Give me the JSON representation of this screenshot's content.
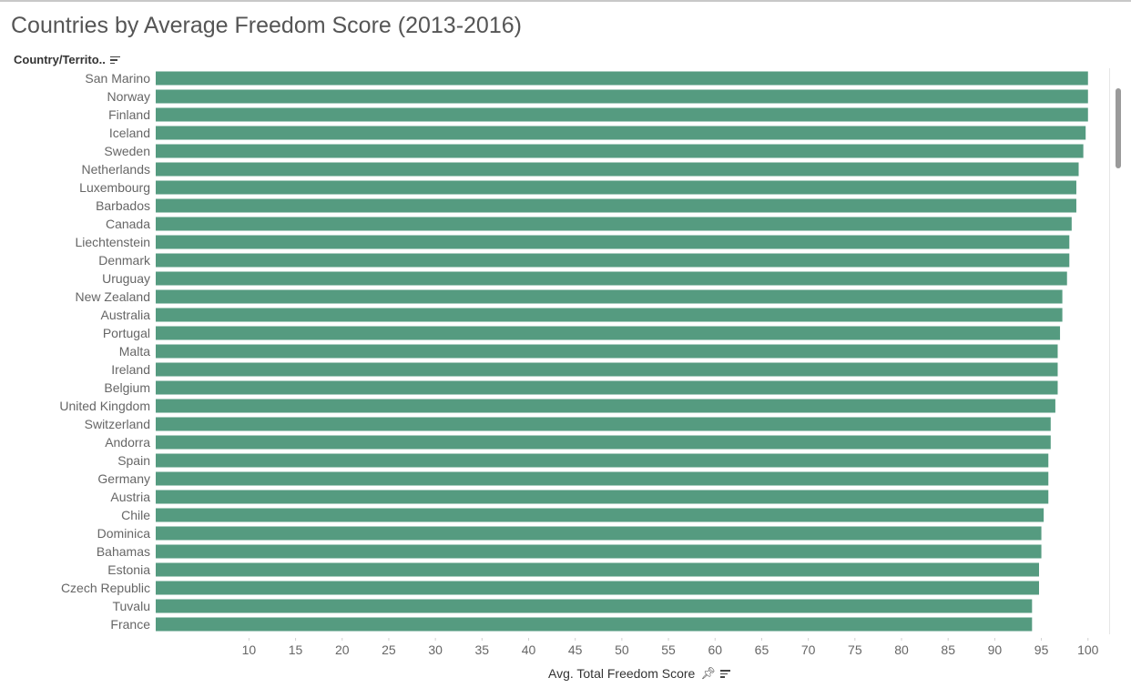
{
  "page": {
    "title": "Countries by Average Freedom Score (2013-2016)"
  },
  "chart_data": {
    "type": "bar",
    "orientation": "horizontal",
    "title": "Countries by Average Freedom Score (2013-2016)",
    "row_header": "Country/Territo..",
    "xlabel": "Avg. Total Freedom Score",
    "ylabel": "",
    "bar_color": "#559b80",
    "xlim": [
      0,
      101
    ],
    "xticks": [
      10,
      15,
      20,
      25,
      30,
      35,
      40,
      45,
      50,
      55,
      60,
      65,
      70,
      75,
      80,
      85,
      90,
      95,
      100
    ],
    "grid": false,
    "categories": [
      "San Marino",
      "Norway",
      "Finland",
      "Iceland",
      "Sweden",
      "Netherlands",
      "Luxembourg",
      "Barbados",
      "Canada",
      "Liechtenstein",
      "Denmark",
      "Uruguay",
      "New Zealand",
      "Australia",
      "Portugal",
      "Malta",
      "Ireland",
      "Belgium",
      "United Kingdom",
      "Switzerland",
      "Andorra",
      "Spain",
      "Germany",
      "Austria",
      "Chile",
      "Dominica",
      "Bahamas",
      "Estonia",
      "Czech Republic",
      "Tuvalu",
      "France"
    ],
    "values": [
      100.0,
      100.0,
      100.0,
      99.75,
      99.5,
      99.0,
      98.75,
      98.75,
      98.25,
      98.0,
      98.0,
      97.75,
      97.25,
      97.25,
      97.0,
      96.75,
      96.75,
      96.75,
      96.5,
      96.0,
      96.0,
      95.75,
      95.75,
      95.75,
      95.25,
      95.0,
      95.0,
      94.75,
      94.75,
      94.0,
      94.0
    ]
  }
}
